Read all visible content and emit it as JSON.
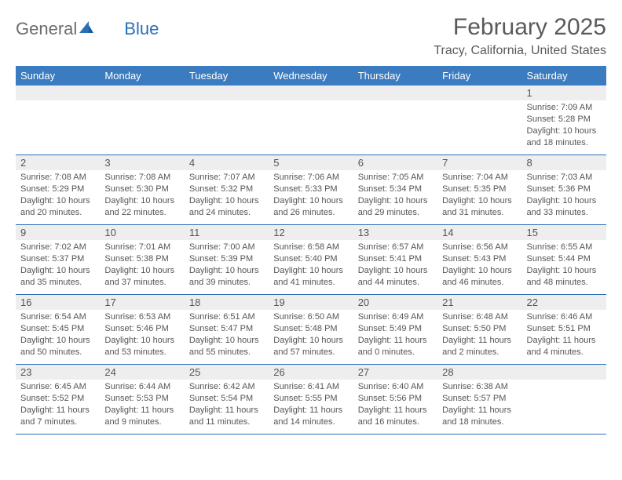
{
  "logo": {
    "text1": "General",
    "text2": "Blue"
  },
  "title": "February 2025",
  "location": "Tracy, California, United States",
  "day_names": [
    "Sunday",
    "Monday",
    "Tuesday",
    "Wednesday",
    "Thursday",
    "Friday",
    "Saturday"
  ],
  "colors": {
    "header_bg": "#3b7bbf",
    "header_text": "#ffffff",
    "week_border": "#2a70b8",
    "daynum_bg": "#eeeeee",
    "text": "#555555"
  },
  "weeks": [
    [
      null,
      null,
      null,
      null,
      null,
      null,
      {
        "n": "1",
        "sr": "Sunrise: 7:09 AM",
        "ss": "Sunset: 5:28 PM",
        "d1": "Daylight: 10 hours",
        "d2": "and 18 minutes."
      }
    ],
    [
      {
        "n": "2",
        "sr": "Sunrise: 7:08 AM",
        "ss": "Sunset: 5:29 PM",
        "d1": "Daylight: 10 hours",
        "d2": "and 20 minutes."
      },
      {
        "n": "3",
        "sr": "Sunrise: 7:08 AM",
        "ss": "Sunset: 5:30 PM",
        "d1": "Daylight: 10 hours",
        "d2": "and 22 minutes."
      },
      {
        "n": "4",
        "sr": "Sunrise: 7:07 AM",
        "ss": "Sunset: 5:32 PM",
        "d1": "Daylight: 10 hours",
        "d2": "and 24 minutes."
      },
      {
        "n": "5",
        "sr": "Sunrise: 7:06 AM",
        "ss": "Sunset: 5:33 PM",
        "d1": "Daylight: 10 hours",
        "d2": "and 26 minutes."
      },
      {
        "n": "6",
        "sr": "Sunrise: 7:05 AM",
        "ss": "Sunset: 5:34 PM",
        "d1": "Daylight: 10 hours",
        "d2": "and 29 minutes."
      },
      {
        "n": "7",
        "sr": "Sunrise: 7:04 AM",
        "ss": "Sunset: 5:35 PM",
        "d1": "Daylight: 10 hours",
        "d2": "and 31 minutes."
      },
      {
        "n": "8",
        "sr": "Sunrise: 7:03 AM",
        "ss": "Sunset: 5:36 PM",
        "d1": "Daylight: 10 hours",
        "d2": "and 33 minutes."
      }
    ],
    [
      {
        "n": "9",
        "sr": "Sunrise: 7:02 AM",
        "ss": "Sunset: 5:37 PM",
        "d1": "Daylight: 10 hours",
        "d2": "and 35 minutes."
      },
      {
        "n": "10",
        "sr": "Sunrise: 7:01 AM",
        "ss": "Sunset: 5:38 PM",
        "d1": "Daylight: 10 hours",
        "d2": "and 37 minutes."
      },
      {
        "n": "11",
        "sr": "Sunrise: 7:00 AM",
        "ss": "Sunset: 5:39 PM",
        "d1": "Daylight: 10 hours",
        "d2": "and 39 minutes."
      },
      {
        "n": "12",
        "sr": "Sunrise: 6:58 AM",
        "ss": "Sunset: 5:40 PM",
        "d1": "Daylight: 10 hours",
        "d2": "and 41 minutes."
      },
      {
        "n": "13",
        "sr": "Sunrise: 6:57 AM",
        "ss": "Sunset: 5:41 PM",
        "d1": "Daylight: 10 hours",
        "d2": "and 44 minutes."
      },
      {
        "n": "14",
        "sr": "Sunrise: 6:56 AM",
        "ss": "Sunset: 5:43 PM",
        "d1": "Daylight: 10 hours",
        "d2": "and 46 minutes."
      },
      {
        "n": "15",
        "sr": "Sunrise: 6:55 AM",
        "ss": "Sunset: 5:44 PM",
        "d1": "Daylight: 10 hours",
        "d2": "and 48 minutes."
      }
    ],
    [
      {
        "n": "16",
        "sr": "Sunrise: 6:54 AM",
        "ss": "Sunset: 5:45 PM",
        "d1": "Daylight: 10 hours",
        "d2": "and 50 minutes."
      },
      {
        "n": "17",
        "sr": "Sunrise: 6:53 AM",
        "ss": "Sunset: 5:46 PM",
        "d1": "Daylight: 10 hours",
        "d2": "and 53 minutes."
      },
      {
        "n": "18",
        "sr": "Sunrise: 6:51 AM",
        "ss": "Sunset: 5:47 PM",
        "d1": "Daylight: 10 hours",
        "d2": "and 55 minutes."
      },
      {
        "n": "19",
        "sr": "Sunrise: 6:50 AM",
        "ss": "Sunset: 5:48 PM",
        "d1": "Daylight: 10 hours",
        "d2": "and 57 minutes."
      },
      {
        "n": "20",
        "sr": "Sunrise: 6:49 AM",
        "ss": "Sunset: 5:49 PM",
        "d1": "Daylight: 11 hours",
        "d2": "and 0 minutes."
      },
      {
        "n": "21",
        "sr": "Sunrise: 6:48 AM",
        "ss": "Sunset: 5:50 PM",
        "d1": "Daylight: 11 hours",
        "d2": "and 2 minutes."
      },
      {
        "n": "22",
        "sr": "Sunrise: 6:46 AM",
        "ss": "Sunset: 5:51 PM",
        "d1": "Daylight: 11 hours",
        "d2": "and 4 minutes."
      }
    ],
    [
      {
        "n": "23",
        "sr": "Sunrise: 6:45 AM",
        "ss": "Sunset: 5:52 PM",
        "d1": "Daylight: 11 hours",
        "d2": "and 7 minutes."
      },
      {
        "n": "24",
        "sr": "Sunrise: 6:44 AM",
        "ss": "Sunset: 5:53 PM",
        "d1": "Daylight: 11 hours",
        "d2": "and 9 minutes."
      },
      {
        "n": "25",
        "sr": "Sunrise: 6:42 AM",
        "ss": "Sunset: 5:54 PM",
        "d1": "Daylight: 11 hours",
        "d2": "and 11 minutes."
      },
      {
        "n": "26",
        "sr": "Sunrise: 6:41 AM",
        "ss": "Sunset: 5:55 PM",
        "d1": "Daylight: 11 hours",
        "d2": "and 14 minutes."
      },
      {
        "n": "27",
        "sr": "Sunrise: 6:40 AM",
        "ss": "Sunset: 5:56 PM",
        "d1": "Daylight: 11 hours",
        "d2": "and 16 minutes."
      },
      {
        "n": "28",
        "sr": "Sunrise: 6:38 AM",
        "ss": "Sunset: 5:57 PM",
        "d1": "Daylight: 11 hours",
        "d2": "and 18 minutes."
      },
      null
    ]
  ]
}
